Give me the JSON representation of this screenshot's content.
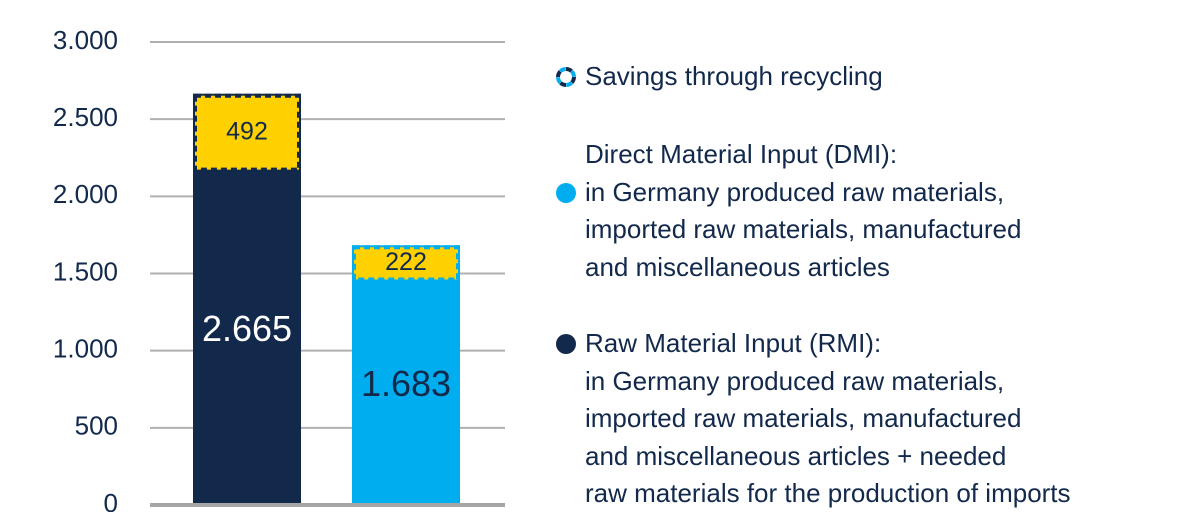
{
  "chart_data": {
    "type": "bar",
    "categories": [
      null,
      null
    ],
    "series": [
      {
        "name": "Savings through recycling",
        "color": "#ffd100",
        "values": [
          492,
          222
        ]
      },
      {
        "name": "Direct Material Input (DMI):\nin Germany produced raw materials,\nimported raw materials, manufactured\nand miscellaneous articles",
        "color": "#00aeef",
        "values": [
          null,
          1683
        ],
        "value_labels": [
          null,
          "1.683"
        ]
      },
      {
        "name": "Raw Material Input (RMI):\nin Germany produced raw materials,\nimported raw materials, manufactured\nand miscellaneous articles + needed\nraw materials for the production of imports",
        "color": "#12294b",
        "values": [
          2665,
          null
        ],
        "value_labels": [
          "2.665",
          null
        ]
      }
    ],
    "ylim": [
      0,
      3000
    ],
    "yticks": [
      0,
      500,
      {
        "value": 1000,
        "label": "1.000"
      },
      {
        "value": 1500,
        "label": "1.500"
      },
      {
        "value": 2000,
        "label": "2.000"
      },
      {
        "value": 2500,
        "label": "2.500"
      },
      {
        "value": 3000,
        "label": "3.000"
      }
    ],
    "grid": true
  }
}
